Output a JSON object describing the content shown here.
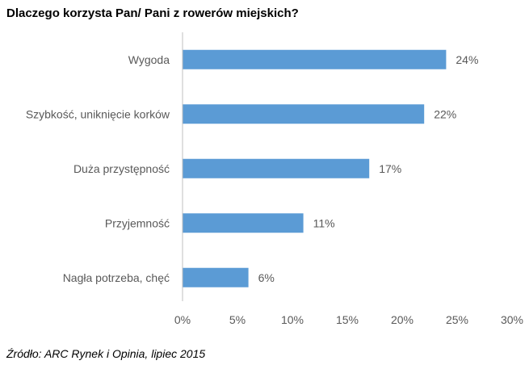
{
  "title": "Dlaczego korzysta Pan/ Pani z rowerów miejskich?",
  "source": "Źródło: ARC Rynek i Opinia, lipiec 2015",
  "chart_data": {
    "type": "bar",
    "orientation": "horizontal",
    "categories": [
      "Wygoda",
      "Szybkość, uniknięcie korków",
      "Duża przystępność",
      "Przyjemność",
      "Nagła potrzeba, chęć"
    ],
    "values": [
      24,
      22,
      17,
      11,
      6
    ],
    "data_labels": [
      "24%",
      "22%",
      "17%",
      "11%",
      "6%"
    ],
    "xlim": [
      0,
      30
    ],
    "x_ticks": [
      0,
      5,
      10,
      15,
      20,
      25,
      30
    ],
    "x_tick_labels": [
      "0%",
      "5%",
      "10%",
      "15%",
      "20%",
      "25%",
      "30%"
    ],
    "grid": false,
    "legend": "none",
    "bar_color": "#5b9bd5",
    "axis_color": "#bfbfbf",
    "text_color": "#595959"
  }
}
